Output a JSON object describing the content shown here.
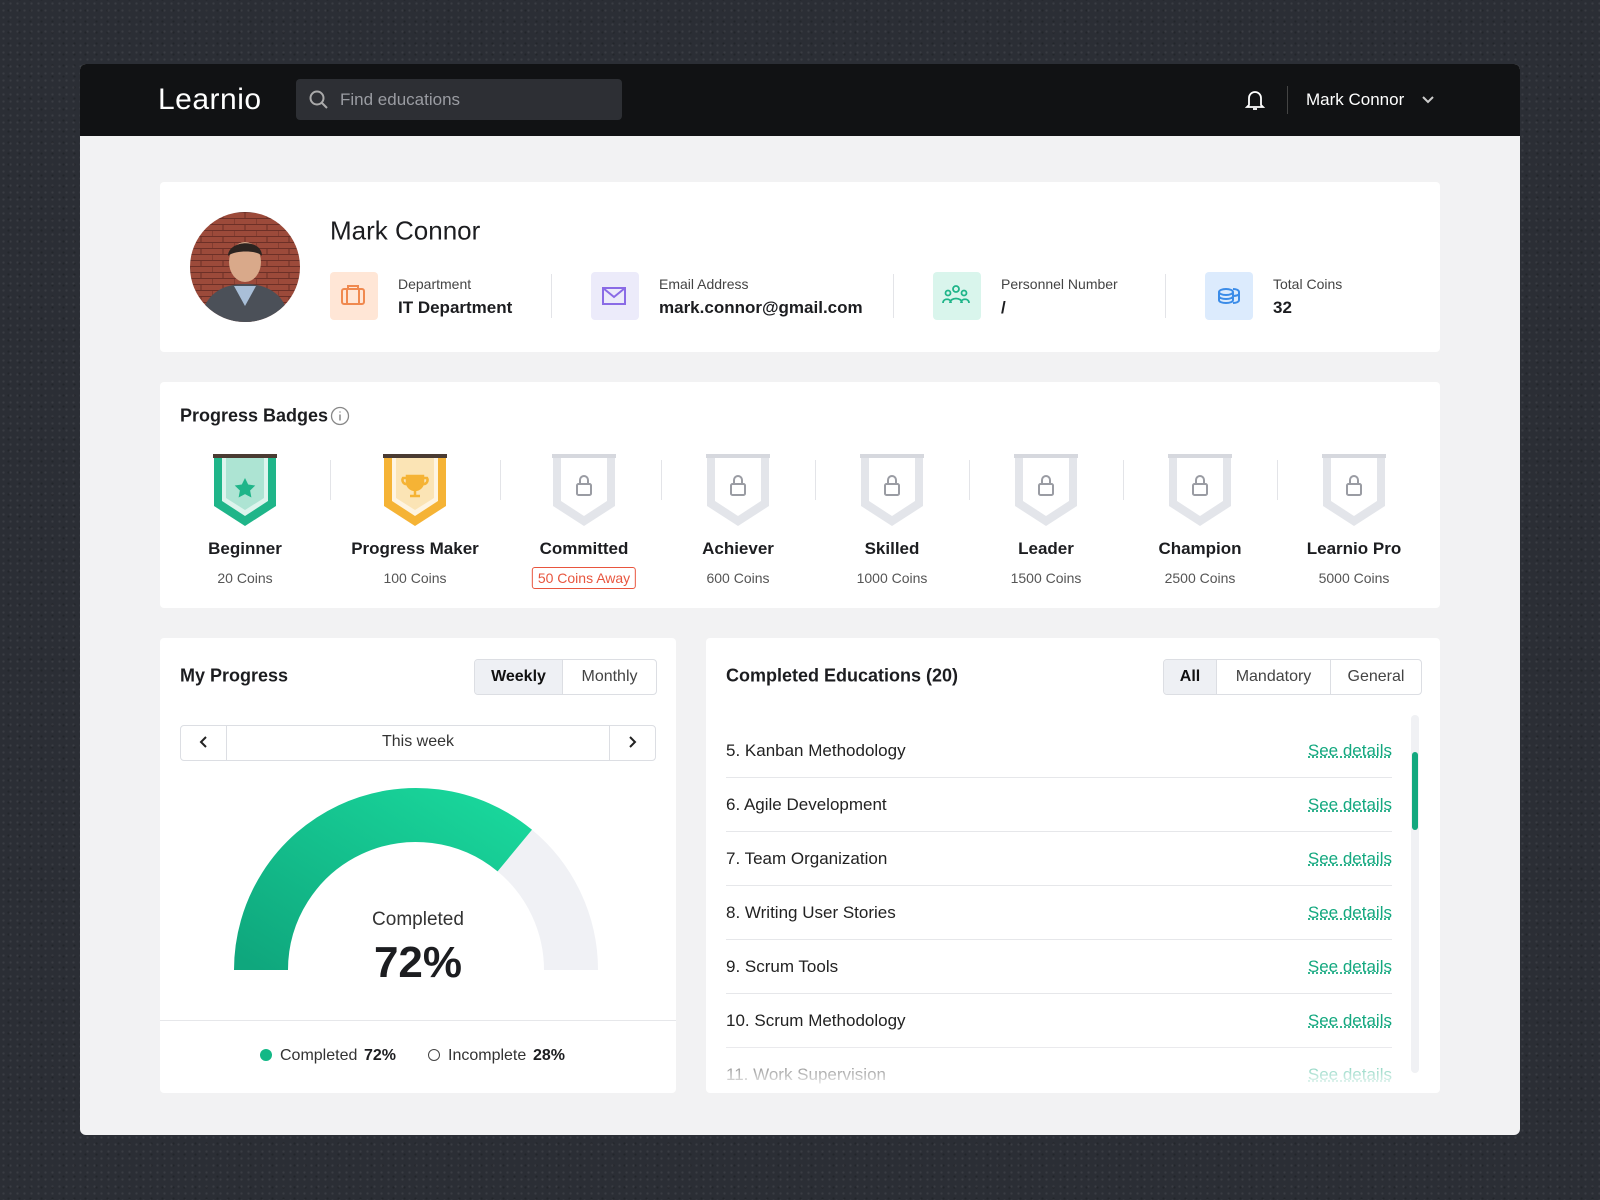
{
  "header": {
    "logo": "Learnio",
    "search_placeholder": "Find educations",
    "user_name": "Mark Connor"
  },
  "profile": {
    "name": "Mark Connor",
    "fields": [
      {
        "label": "Department",
        "value": "IT Department"
      },
      {
        "label": "Email Address",
        "value": "mark.connor@gmail.com"
      },
      {
        "label": "Personnel Number",
        "value": "/"
      },
      {
        "label": "Total Coins",
        "value": "32"
      }
    ]
  },
  "badges": {
    "title": "Progress Badges",
    "items": [
      {
        "name": "Beginner",
        "coins": "20 Coins",
        "color": "#1fb589",
        "icon": "star"
      },
      {
        "name": "Progress Maker",
        "coins": "100 Coins",
        "color": "#f5b335",
        "icon": "trophy"
      },
      {
        "name": "Committed",
        "coins": "50 Coins Away",
        "color": "#e3e5ea",
        "icon": "lock",
        "coins_color": "#e8553e"
      },
      {
        "name": "Achiever",
        "coins": "600 Coins",
        "color": "#e3e5ea",
        "icon": "lock"
      },
      {
        "name": "Skilled",
        "coins": "1000 Coins",
        "color": "#e3e5ea",
        "icon": "lock"
      },
      {
        "name": "Leader",
        "coins": "1500 Coins",
        "color": "#e3e5ea",
        "icon": "lock"
      },
      {
        "name": "Champion",
        "coins": "2500 Coins",
        "color": "#e3e5ea",
        "icon": "lock"
      },
      {
        "name": "Learnio Pro",
        "coins": "5000 Coins",
        "color": "#e3e5ea",
        "icon": "lock"
      }
    ]
  },
  "progress": {
    "title": "My Progress",
    "tabs": [
      "Weekly",
      "Monthly"
    ],
    "period": "This week",
    "gauge": {
      "label": "Completed",
      "value_label": "72%"
    },
    "legend": [
      {
        "name": "Completed",
        "value": 72,
        "value_label": "72%",
        "color": "#12b886"
      },
      {
        "name": "Incomplete",
        "value": 28,
        "value_label": "28%",
        "color": "#f0f1f5"
      }
    ]
  },
  "educations": {
    "title": "Completed Educations (20)",
    "filters": [
      "All",
      "Mandatory",
      "General"
    ],
    "items": [
      {
        "name": "5. Kanban Methodology",
        "action": "See details"
      },
      {
        "name": "6. Agile Development",
        "action": "See details"
      },
      {
        "name": "7. Team Organization",
        "action": "See details"
      },
      {
        "name": "8. Writing User Stories",
        "action": "See details"
      },
      {
        "name": "9. Scrum Tools",
        "action": "See details"
      },
      {
        "name": "10. Scrum Methodology",
        "action": "See details"
      },
      {
        "name": "11. Work Supervision",
        "action": "See details"
      }
    ]
  }
}
